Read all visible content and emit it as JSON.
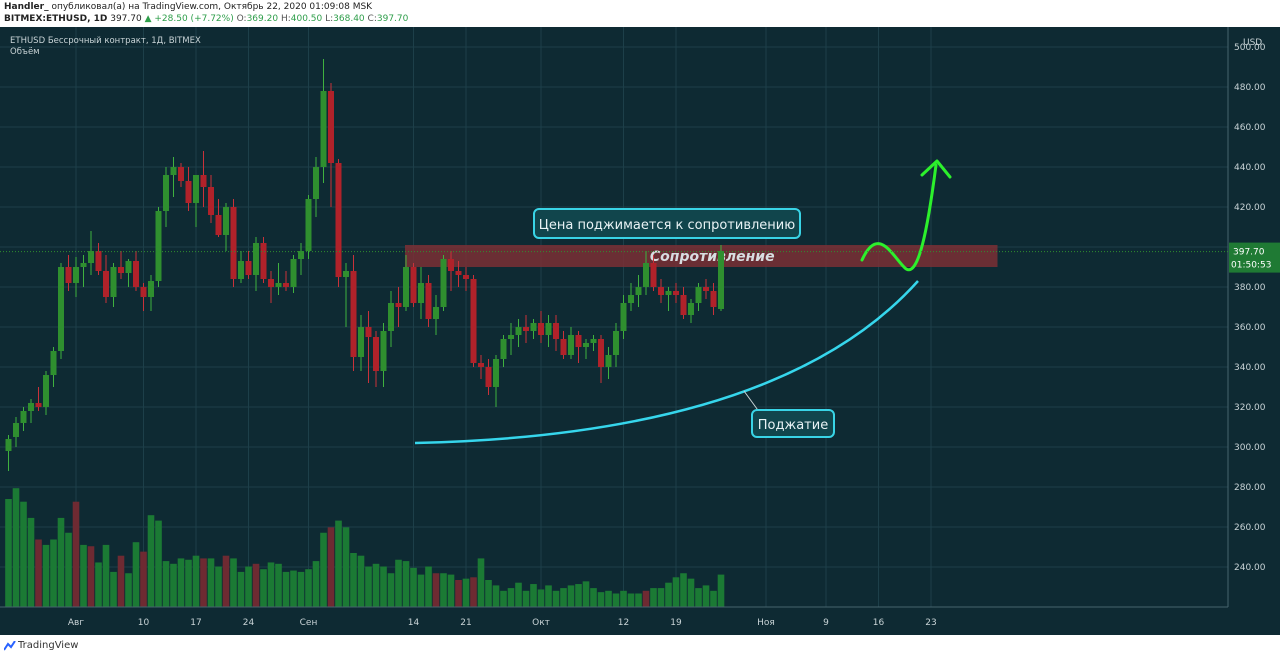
{
  "header": {
    "author": "Handler_",
    "published_text": "опубликовал(а) на TradingView.com, Октябрь 22, 2020 01:09:08 MSK",
    "symbol": "BITMEX:ETHUSD, 1D",
    "price": "397.70",
    "change": "▲ +28.50 (+7.72%)",
    "o_label": "O:",
    "o_value": "369.20",
    "h_label": "H:",
    "h_value": "400.50",
    "l_label": "L:",
    "l_value": "368.40",
    "c_label": "C:",
    "c_value": "397.70"
  },
  "legend": {
    "title": "ETHUSD Бессрочный контракт, 1Д, BITMEX",
    "volume": "Объём"
  },
  "footer": {
    "brand": "TradingView"
  },
  "colors": {
    "background": "#0e2a33",
    "bull": "#2f8f2f",
    "bear": "#b0222a",
    "resistance_zone": "#7a2f35",
    "arrow": "#2cf02c",
    "curve": "#36d6ec",
    "grid": "#1d3f49"
  },
  "chart_data": {
    "type": "candlestick",
    "currency": "USD",
    "ylim": [
      220,
      510
    ],
    "yticks": [
      240,
      260,
      280,
      300,
      320,
      340,
      360,
      380,
      400,
      420,
      440,
      460,
      480,
      500
    ],
    "xticks": [
      {
        "i": 9,
        "label": "Авг"
      },
      {
        "i": 18,
        "label": "10"
      },
      {
        "i": 25,
        "label": "17"
      },
      {
        "i": 32,
        "label": "24"
      },
      {
        "i": 40,
        "label": "Сен"
      },
      {
        "i": 54,
        "label": "14"
      },
      {
        "i": 61,
        "label": "21"
      },
      {
        "i": 71,
        "label": "Окт"
      },
      {
        "i": 82,
        "label": "12"
      },
      {
        "i": 89,
        "label": "19"
      },
      {
        "i": 101,
        "label": "Ноя"
      },
      {
        "i": 109,
        "label": "9"
      },
      {
        "i": 116,
        "label": "16"
      },
      {
        "i": 123,
        "label": "23"
      }
    ],
    "candles": [
      [
        298,
        306,
        288,
        304
      ],
      [
        305,
        315,
        300,
        312
      ],
      [
        312,
        320,
        308,
        318
      ],
      [
        318,
        324,
        312,
        322
      ],
      [
        322,
        330,
        318,
        320
      ],
      [
        320,
        338,
        316,
        336
      ],
      [
        336,
        350,
        330,
        348
      ],
      [
        348,
        392,
        344,
        390
      ],
      [
        390,
        396,
        378,
        382
      ],
      [
        382,
        395,
        375,
        390
      ],
      [
        390,
        396,
        380,
        392
      ],
      [
        392,
        408,
        386,
        398
      ],
      [
        398,
        402,
        386,
        388
      ],
      [
        388,
        396,
        372,
        375
      ],
      [
        375,
        392,
        370,
        390
      ],
      [
        390,
        398,
        384,
        387
      ],
      [
        387,
        394,
        380,
        393
      ],
      [
        393,
        398,
        378,
        380
      ],
      [
        380,
        382,
        368,
        375
      ],
      [
        375,
        386,
        368,
        383
      ],
      [
        383,
        420,
        380,
        418
      ],
      [
        418,
        440,
        410,
        436
      ],
      [
        436,
        445,
        425,
        440
      ],
      [
        440,
        442,
        430,
        433
      ],
      [
        433,
        440,
        418,
        422
      ],
      [
        422,
        436,
        410,
        436
      ],
      [
        436,
        448,
        420,
        430
      ],
      [
        430,
        436,
        412,
        416
      ],
      [
        416,
        424,
        405,
        406
      ],
      [
        406,
        422,
        398,
        420
      ],
      [
        420,
        424,
        380,
        384
      ],
      [
        384,
        398,
        382,
        393
      ],
      [
        393,
        398,
        384,
        386
      ],
      [
        386,
        405,
        378,
        402
      ],
      [
        402,
        405,
        382,
        384
      ],
      [
        384,
        388,
        372,
        380
      ],
      [
        380,
        392,
        376,
        382
      ],
      [
        382,
        388,
        378,
        380
      ],
      [
        380,
        396,
        377,
        394
      ],
      [
        394,
        402,
        386,
        398
      ],
      [
        398,
        426,
        394,
        424
      ],
      [
        424,
        445,
        415,
        440
      ],
      [
        440,
        494,
        432,
        478
      ],
      [
        478,
        482,
        420,
        442
      ],
      [
        442,
        444,
        380,
        385
      ],
      [
        385,
        392,
        360,
        388
      ],
      [
        388,
        396,
        338,
        345
      ],
      [
        345,
        366,
        338,
        360
      ],
      [
        360,
        368,
        332,
        355
      ],
      [
        355,
        358,
        330,
        338
      ],
      [
        338,
        362,
        330,
        358
      ],
      [
        358,
        378,
        350,
        372
      ],
      [
        372,
        380,
        360,
        370
      ],
      [
        370,
        396,
        368,
        390
      ],
      [
        390,
        392,
        370,
        372
      ],
      [
        372,
        390,
        364,
        382
      ],
      [
        382,
        386,
        360,
        364
      ],
      [
        364,
        376,
        356,
        370
      ],
      [
        370,
        396,
        368,
        394
      ],
      [
        394,
        398,
        378,
        388
      ],
      [
        388,
        393,
        380,
        386
      ],
      [
        386,
        390,
        378,
        384
      ],
      [
        384,
        386,
        340,
        342
      ],
      [
        342,
        346,
        334,
        340
      ],
      [
        340,
        344,
        326,
        330
      ],
      [
        330,
        346,
        320,
        344
      ],
      [
        344,
        356,
        340,
        354
      ],
      [
        354,
        362,
        346,
        356
      ],
      [
        356,
        364,
        350,
        360
      ],
      [
        360,
        366,
        352,
        358
      ],
      [
        358,
        364,
        354,
        362
      ],
      [
        362,
        368,
        352,
        356
      ],
      [
        356,
        366,
        350,
        362
      ],
      [
        362,
        366,
        348,
        354
      ],
      [
        354,
        358,
        344,
        346
      ],
      [
        346,
        360,
        344,
        356
      ],
      [
        356,
        358,
        342,
        350
      ],
      [
        350,
        354,
        344,
        352
      ],
      [
        352,
        356,
        348,
        354
      ],
      [
        354,
        356,
        332,
        340
      ],
      [
        340,
        350,
        334,
        346
      ],
      [
        346,
        362,
        340,
        358
      ],
      [
        358,
        376,
        354,
        372
      ],
      [
        372,
        382,
        368,
        376
      ],
      [
        376,
        386,
        370,
        380
      ],
      [
        380,
        398,
        376,
        392
      ],
      [
        392,
        396,
        378,
        380
      ],
      [
        380,
        384,
        372,
        376
      ],
      [
        376,
        380,
        368,
        378
      ],
      [
        378,
        382,
        372,
        376
      ],
      [
        376,
        380,
        364,
        366
      ],
      [
        366,
        374,
        362,
        372
      ],
      [
        372,
        382,
        368,
        380
      ],
      [
        380,
        384,
        374,
        378
      ],
      [
        378,
        382,
        366,
        370
      ],
      [
        369,
        401,
        368,
        398
      ]
    ],
    "volumes": [
      [
        80,
        1
      ],
      [
        88,
        1
      ],
      [
        78,
        1
      ],
      [
        66,
        1
      ],
      [
        50,
        0
      ],
      [
        46,
        1
      ],
      [
        50,
        1
      ],
      [
        66,
        1
      ],
      [
        55,
        1
      ],
      [
        78,
        0
      ],
      [
        46,
        1
      ],
      [
        45,
        0
      ],
      [
        33,
        1
      ],
      [
        46,
        1
      ],
      [
        26,
        1
      ],
      [
        38,
        0
      ],
      [
        25,
        1
      ],
      [
        48,
        1
      ],
      [
        41,
        0
      ],
      [
        68,
        1
      ],
      [
        64,
        1
      ],
      [
        34,
        1
      ],
      [
        32,
        1
      ],
      [
        36,
        1
      ],
      [
        35,
        1
      ],
      [
        38,
        1
      ],
      [
        36,
        0
      ],
      [
        36,
        1
      ],
      [
        30,
        1
      ],
      [
        38,
        0
      ],
      [
        36,
        1
      ],
      [
        26,
        1
      ],
      [
        30,
        1
      ],
      [
        32,
        0
      ],
      [
        28,
        1
      ],
      [
        33,
        1
      ],
      [
        32,
        1
      ],
      [
        26,
        1
      ],
      [
        27,
        1
      ],
      [
        26,
        1
      ],
      [
        28,
        1
      ],
      [
        34,
        1
      ],
      [
        55,
        1
      ],
      [
        59,
        0
      ],
      [
        64,
        1
      ],
      [
        59,
        1
      ],
      [
        40,
        1
      ],
      [
        38,
        1
      ],
      [
        30,
        1
      ],
      [
        32,
        1
      ],
      [
        30,
        1
      ],
      [
        25,
        1
      ],
      [
        35,
        1
      ],
      [
        34,
        1
      ],
      [
        29,
        1
      ],
      [
        24,
        1
      ],
      [
        30,
        1
      ],
      [
        25,
        0
      ],
      [
        25,
        1
      ],
      [
        24,
        1
      ],
      [
        20,
        0
      ],
      [
        21,
        1
      ],
      [
        22,
        0
      ],
      [
        36,
        1
      ],
      [
        20,
        1
      ],
      [
        16,
        1
      ],
      [
        12,
        1
      ],
      [
        14,
        1
      ],
      [
        18,
        1
      ],
      [
        12,
        1
      ],
      [
        17,
        1
      ],
      [
        13,
        1
      ],
      [
        16,
        1
      ],
      [
        12,
        1
      ],
      [
        14,
        1
      ],
      [
        16,
        1
      ],
      [
        17,
        1
      ],
      [
        19,
        1
      ],
      [
        14,
        1
      ],
      [
        11,
        1
      ],
      [
        12,
        1
      ],
      [
        10,
        1
      ],
      [
        12,
        1
      ],
      [
        10,
        1
      ],
      [
        10,
        1
      ],
      [
        12,
        0
      ],
      [
        14,
        1
      ],
      [
        14,
        1
      ],
      [
        18,
        1
      ],
      [
        22,
        1
      ],
      [
        25,
        1
      ],
      [
        21,
        1
      ],
      [
        14,
        1
      ],
      [
        16,
        1
      ],
      [
        12,
        1
      ],
      [
        24,
        1
      ]
    ],
    "resistance_zone": [
      390,
      401
    ],
    "last_price": "397.70",
    "countdown": "01:50:53"
  },
  "annotations": {
    "resistance_label": "Сопротивление",
    "callout_top": "Цена поджимается к сопротивлению",
    "callout_bottom": "Поджатие"
  }
}
